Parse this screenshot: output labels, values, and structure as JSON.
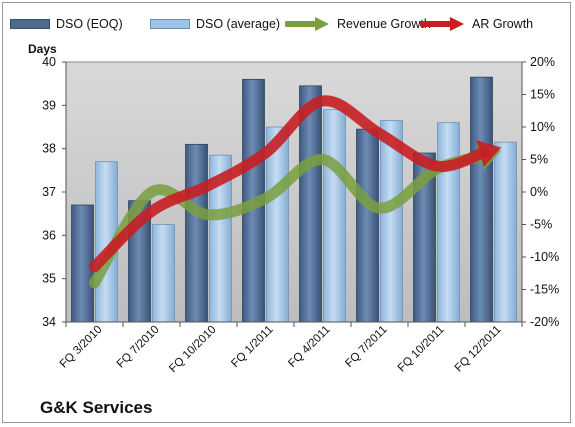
{
  "chart_data": {
    "type": "bar",
    "title": "G&K Services",
    "ylabel": "Days",
    "categories": [
      "FQ 3/2010",
      "FQ 7/2010",
      "FQ 10/2010",
      "FQ 1/2011",
      "FQ 4/2011",
      "FQ 7/2011",
      "FQ 10/2011",
      "FQ 12/2011"
    ],
    "ylim": [
      34,
      40
    ],
    "yticks": [
      "34",
      "35",
      "36",
      "37",
      "38",
      "39",
      "40"
    ],
    "y2lim": [
      -0.2,
      0.2
    ],
    "y2ticks": [
      "-20%",
      "-15%",
      "-10%",
      "-5%",
      "0%",
      "5%",
      "10%",
      "15%",
      "20%"
    ],
    "series": [
      {
        "name": "DSO (EOQ)",
        "kind": "bar",
        "values": [
          36.7,
          36.8,
          38.1,
          39.6,
          39.45,
          38.45,
          37.9,
          39.65
        ]
      },
      {
        "name": "DSO (average)",
        "kind": "bar",
        "values": [
          37.7,
          36.25,
          37.85,
          38.5,
          38.9,
          38.65,
          38.6,
          38.15
        ]
      },
      {
        "name": "Revenue Growth",
        "kind": "line",
        "axis": "secondary",
        "values": [
          -0.14,
          0.0,
          -0.035,
          -0.01,
          0.05,
          -0.025,
          0.035,
          0.06
        ]
      },
      {
        "name": "AR Growth",
        "kind": "line",
        "axis": "secondary",
        "values": [
          -0.115,
          -0.03,
          0.01,
          0.06,
          0.14,
          0.09,
          0.04,
          0.065
        ]
      }
    ],
    "legend_position": "top",
    "grid": false,
    "colors": {
      "bar_eoq": "#4e6a90",
      "bar_avg": "#9ec3e6",
      "revenue": "#7a9f3e",
      "ar": "#c81e22",
      "plot_bg": "#c6c6c6"
    }
  }
}
